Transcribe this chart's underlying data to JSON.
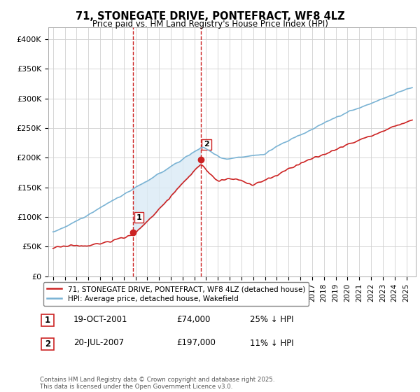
{
  "title": "71, STONEGATE DRIVE, PONTEFRACT, WF8 4LZ",
  "subtitle": "Price paid vs. HM Land Registry's House Price Index (HPI)",
  "background_color": "#ffffff",
  "grid_color": "#d0d0d0",
  "hpi_color": "#7ab3d4",
  "price_color": "#cc2222",
  "shade_color": "#daeaf5",
  "vline_color": "#cc2222",
  "ylim": [
    0,
    420000
  ],
  "yticks": [
    0,
    50000,
    100000,
    150000,
    200000,
    250000,
    300000,
    350000,
    400000
  ],
  "ytick_labels": [
    "£0",
    "£50K",
    "£100K",
    "£150K",
    "£200K",
    "£250K",
    "£300K",
    "£350K",
    "£400K"
  ],
  "sale1_date": 2001.8,
  "sale1_price": 74000,
  "sale1_label": "1",
  "sale2_date": 2007.55,
  "sale2_price": 197000,
  "sale2_label": "2",
  "xlim_left": 1994.6,
  "xlim_right": 2025.8,
  "legend_line1": "71, STONEGATE DRIVE, PONTEFRACT, WF8 4LZ (detached house)",
  "legend_line2": "HPI: Average price, detached house, Wakefield",
  "footnote": "Contains HM Land Registry data © Crown copyright and database right 2025.\nThis data is licensed under the Open Government Licence v3.0.",
  "table_row1": [
    "1",
    "19-OCT-2001",
    "£74,000",
    "25% ↓ HPI"
  ],
  "table_row2": [
    "2",
    "20-JUL-2007",
    "£197,000",
    "11% ↓ HPI"
  ]
}
